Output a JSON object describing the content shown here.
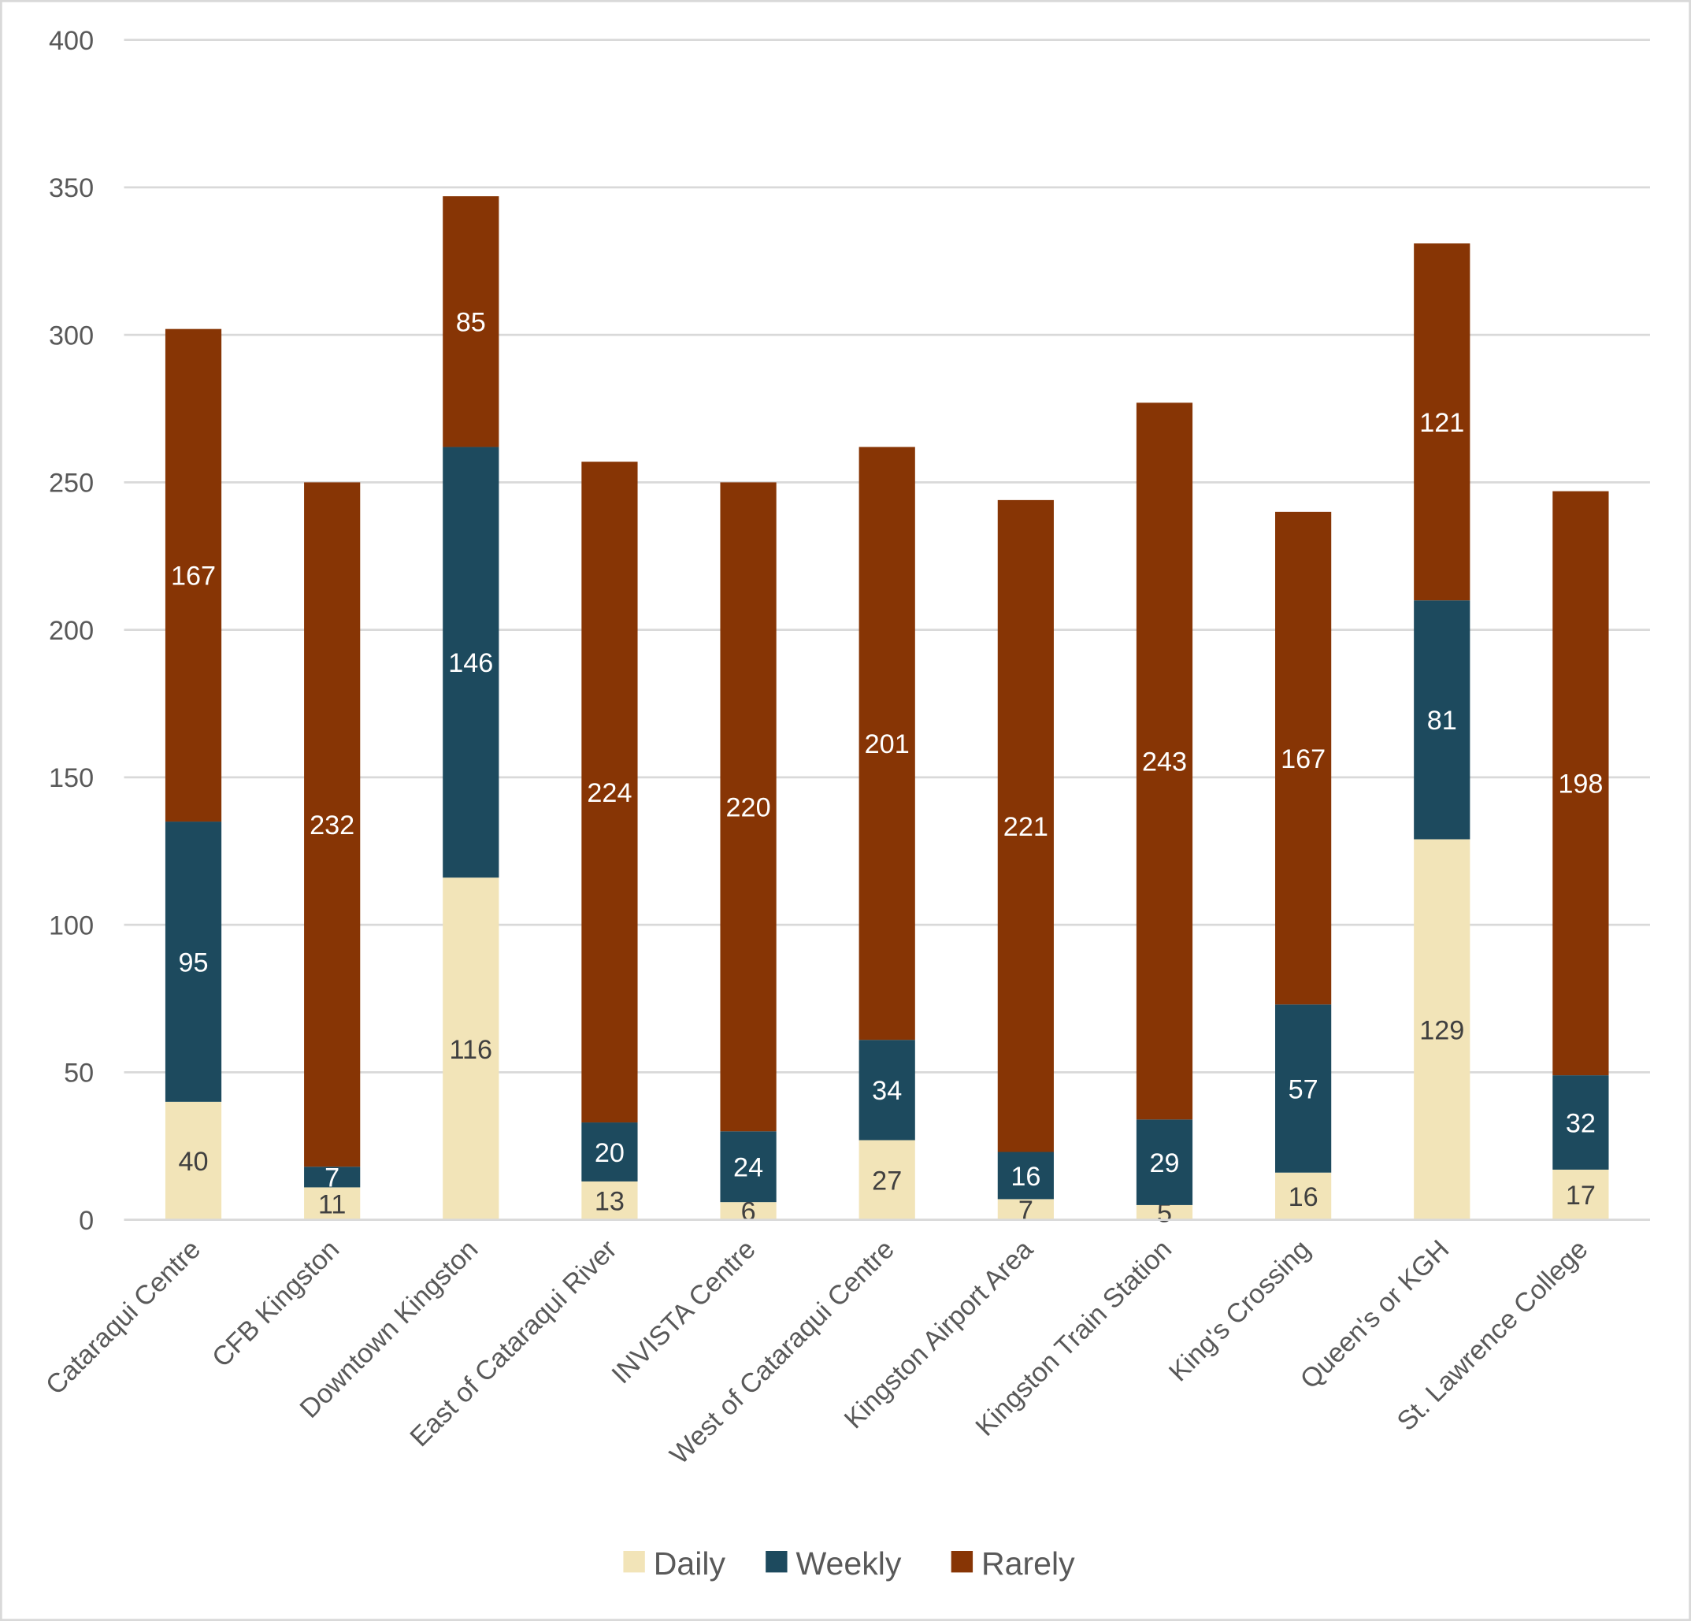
{
  "chart_data": {
    "type": "bar",
    "stacked": true,
    "title": "",
    "xlabel": "",
    "ylabel": "",
    "ylim": [
      0,
      400
    ],
    "yticks": [
      0,
      50,
      100,
      150,
      200,
      250,
      300,
      350,
      400
    ],
    "grid": true,
    "legend_position": "bottom",
    "categories": [
      "Cataraqui Centre",
      "CFB Kingston",
      "Downtown Kingston",
      "East of Cataraqui River",
      "INVISTA Centre",
      "West of Cataraqui Centre",
      "Kingston Airport Area",
      "Kingston Train Station",
      "King's Crossing",
      "Queen's or KGH",
      "St. Lawrence College"
    ],
    "series": [
      {
        "name": "Daily",
        "color": "#F2E4B8",
        "label_color": "#404040",
        "values": [
          40,
          11,
          116,
          13,
          6,
          27,
          7,
          5,
          16,
          129,
          17
        ]
      },
      {
        "name": "Weekly",
        "color": "#1D4A5E",
        "label_color": "#FFFFFF",
        "values": [
          95,
          7,
          146,
          20,
          24,
          34,
          16,
          29,
          57,
          81,
          32
        ]
      },
      {
        "name": "Rarely",
        "color": "#873505",
        "label_color": "#FFFFFF",
        "values": [
          167,
          232,
          85,
          224,
          220,
          201,
          221,
          243,
          167,
          121,
          198
        ]
      }
    ]
  }
}
